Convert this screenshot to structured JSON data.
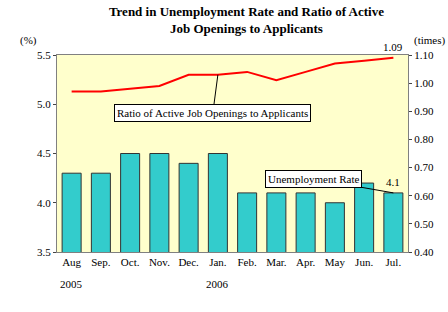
{
  "chart_data": {
    "type": "bar",
    "title": "Trend in Unemployment Rate and Ratio of Active\nJob Openings to Applicants",
    "ylabel": "(%)",
    "y2label": "(times)",
    "categories": [
      "Aug",
      "Sep.",
      "Oct.",
      "Nov.",
      "Dec.",
      "Jan.",
      "Feb.",
      "Mar.",
      "Apr.",
      "May",
      "Jun.",
      "Jul."
    ],
    "series": [
      {
        "name": "Unemployment Rate",
        "type": "bar",
        "color": "#33cccc",
        "axis": "y",
        "values": [
          4.3,
          4.3,
          4.5,
          4.5,
          4.4,
          4.5,
          4.1,
          4.1,
          4.1,
          4.0,
          4.2,
          4.1
        ]
      },
      {
        "name": "Ratio of Active Job Openings to Applicants",
        "type": "line",
        "color": "#ff0000",
        "axis": "y2",
        "values": [
          0.97,
          0.97,
          0.98,
          0.99,
          1.03,
          1.03,
          1.04,
          1.01,
          1.04,
          1.07,
          1.08,
          1.09
        ]
      }
    ],
    "ylim": [
      3.5,
      5.5
    ],
    "yticks": [
      3.5,
      {
        "value": 4,
        "label": "4.0"
      },
      4.5,
      {
        "value": 5,
        "label": "5.0"
      },
      5.5
    ],
    "y2lim": [
      0.4,
      1.1
    ],
    "y2ticks": [
      {
        "value": 0.4,
        "label": "0.40"
      },
      {
        "value": 0.5,
        "label": "0.50"
      },
      {
        "value": 0.6,
        "label": "0.60"
      },
      {
        "value": 0.7,
        "label": "0.70"
      },
      {
        "value": 0.8,
        "label": "0.80"
      },
      {
        "value": 0.9,
        "label": "0.90"
      },
      {
        "value": 1,
        "label": "1.00"
      },
      {
        "value": 1.1,
        "label": "1.10"
      }
    ],
    "grid": false,
    "annotations": [
      {
        "text": "2005",
        "category": "Aug"
      },
      {
        "text": "2006",
        "category": "Jan."
      },
      {
        "text": "Ratio of Active Job Openings to Applicants",
        "category": "Jan.",
        "series": "Ratio of Active Job Openings to Applicants"
      },
      {
        "text": "Unemployment Rate",
        "category": "Jul.",
        "series": "Unemployment Rate"
      },
      {
        "text": "1.09",
        "category": "Jul.",
        "series": "Ratio of Active Job Openings to Applicants"
      },
      {
        "text": "4.1",
        "category": "Jul.",
        "series": "Unemployment Rate"
      }
    ]
  }
}
